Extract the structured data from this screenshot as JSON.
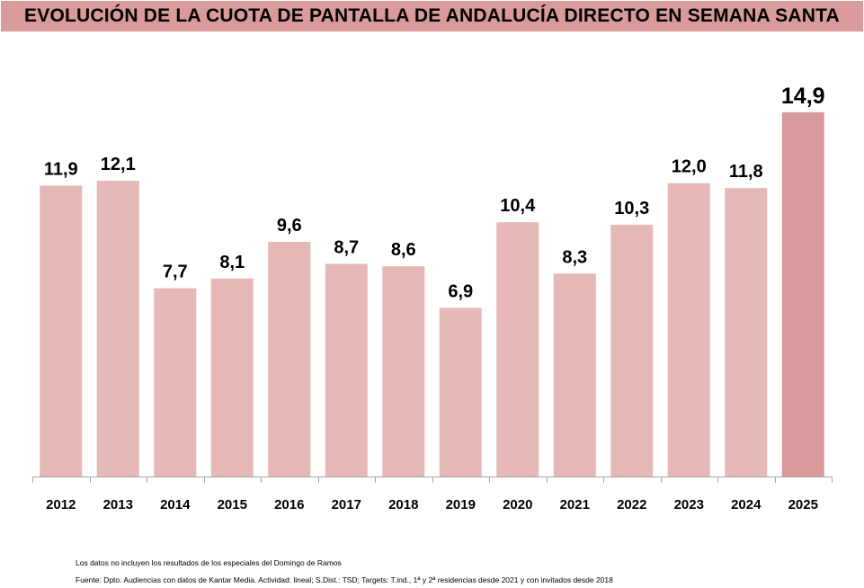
{
  "chart_data": {
    "type": "bar",
    "title": "EVOLUCIÓN DE LA CUOTA DE PANTALLA DE ANDALUCÍA DIRECTO EN SEMANA SANTA",
    "xlabel": "",
    "ylabel": "",
    "categories": [
      "2012",
      "2013",
      "2014",
      "2015",
      "2016",
      "2017",
      "2018",
      "2019",
      "2020",
      "2021",
      "2022",
      "2023",
      "2024",
      "2025"
    ],
    "values": [
      11.9,
      12.1,
      7.7,
      8.1,
      9.6,
      8.7,
      8.6,
      6.9,
      10.4,
      8.3,
      10.3,
      12.0,
      11.8,
      14.9
    ],
    "labels": [
      "11,9",
      "12,1",
      "7,7",
      "8,1",
      "9,6",
      "8,7",
      "8,6",
      "6,9",
      "10,4",
      "8,3",
      "10,3",
      "12,0",
      "11,8",
      "14,9"
    ],
    "highlight_index": 13,
    "ylim": [
      0,
      15.3
    ],
    "grid": false,
    "legend": "none",
    "colors": {
      "bar": "#e6b8b8",
      "highlight": "#d99a9b",
      "axis": "#a6a6a6",
      "title_bg": "#d99a9b"
    }
  },
  "notes": {
    "line1": "Los datos no incluyen los resultados de los especiales del Domingo de Ramos",
    "line2": "Fuente: Dpto. Audiencias con datos de Kantar Media. Actividad: lineal; S.Dist.: TSD; Targets: T.ind., 1ª y 2ª residencias desde 2021 y con invitados desde 2018"
  }
}
